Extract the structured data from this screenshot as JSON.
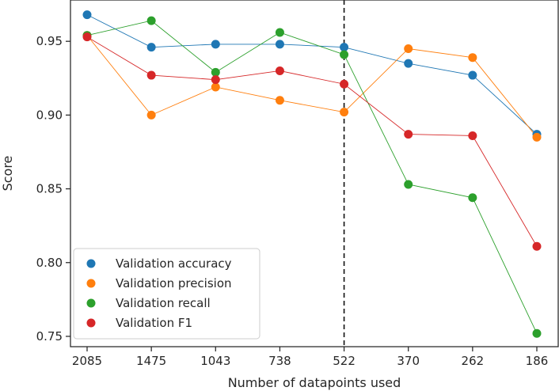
{
  "chart_data": {
    "type": "line",
    "title": "",
    "xlabel": "Number of datapoints used",
    "ylabel": "Score",
    "categories": [
      "2085",
      "1475",
      "1043",
      "738",
      "522",
      "370",
      "262",
      "186"
    ],
    "ylim": [
      0.743,
      0.978
    ],
    "yticks": [
      0.75,
      0.8,
      0.85,
      0.9,
      0.95
    ],
    "ytick_labels": [
      "0.75",
      "0.80",
      "0.85",
      "0.90",
      "0.95"
    ],
    "vline_category": "522",
    "legend_position": "lower-left",
    "series": [
      {
        "name": "Validation accuracy",
        "color": "#1f77b4",
        "values": [
          0.968,
          0.946,
          0.948,
          0.948,
          0.946,
          0.935,
          0.927,
          0.887
        ]
      },
      {
        "name": "Validation precision",
        "color": "#ff7f0e",
        "values": [
          0.954,
          0.9,
          0.919,
          0.91,
          0.902,
          0.945,
          0.939,
          0.885
        ]
      },
      {
        "name": "Validation recall",
        "color": "#2ca02c",
        "values": [
          0.954,
          0.964,
          0.929,
          0.956,
          0.941,
          0.853,
          0.844,
          0.752
        ]
      },
      {
        "name": "Validation F1",
        "color": "#d62728",
        "values": [
          0.953,
          0.927,
          0.924,
          0.93,
          0.921,
          0.887,
          0.886,
          0.811
        ]
      }
    ]
  }
}
